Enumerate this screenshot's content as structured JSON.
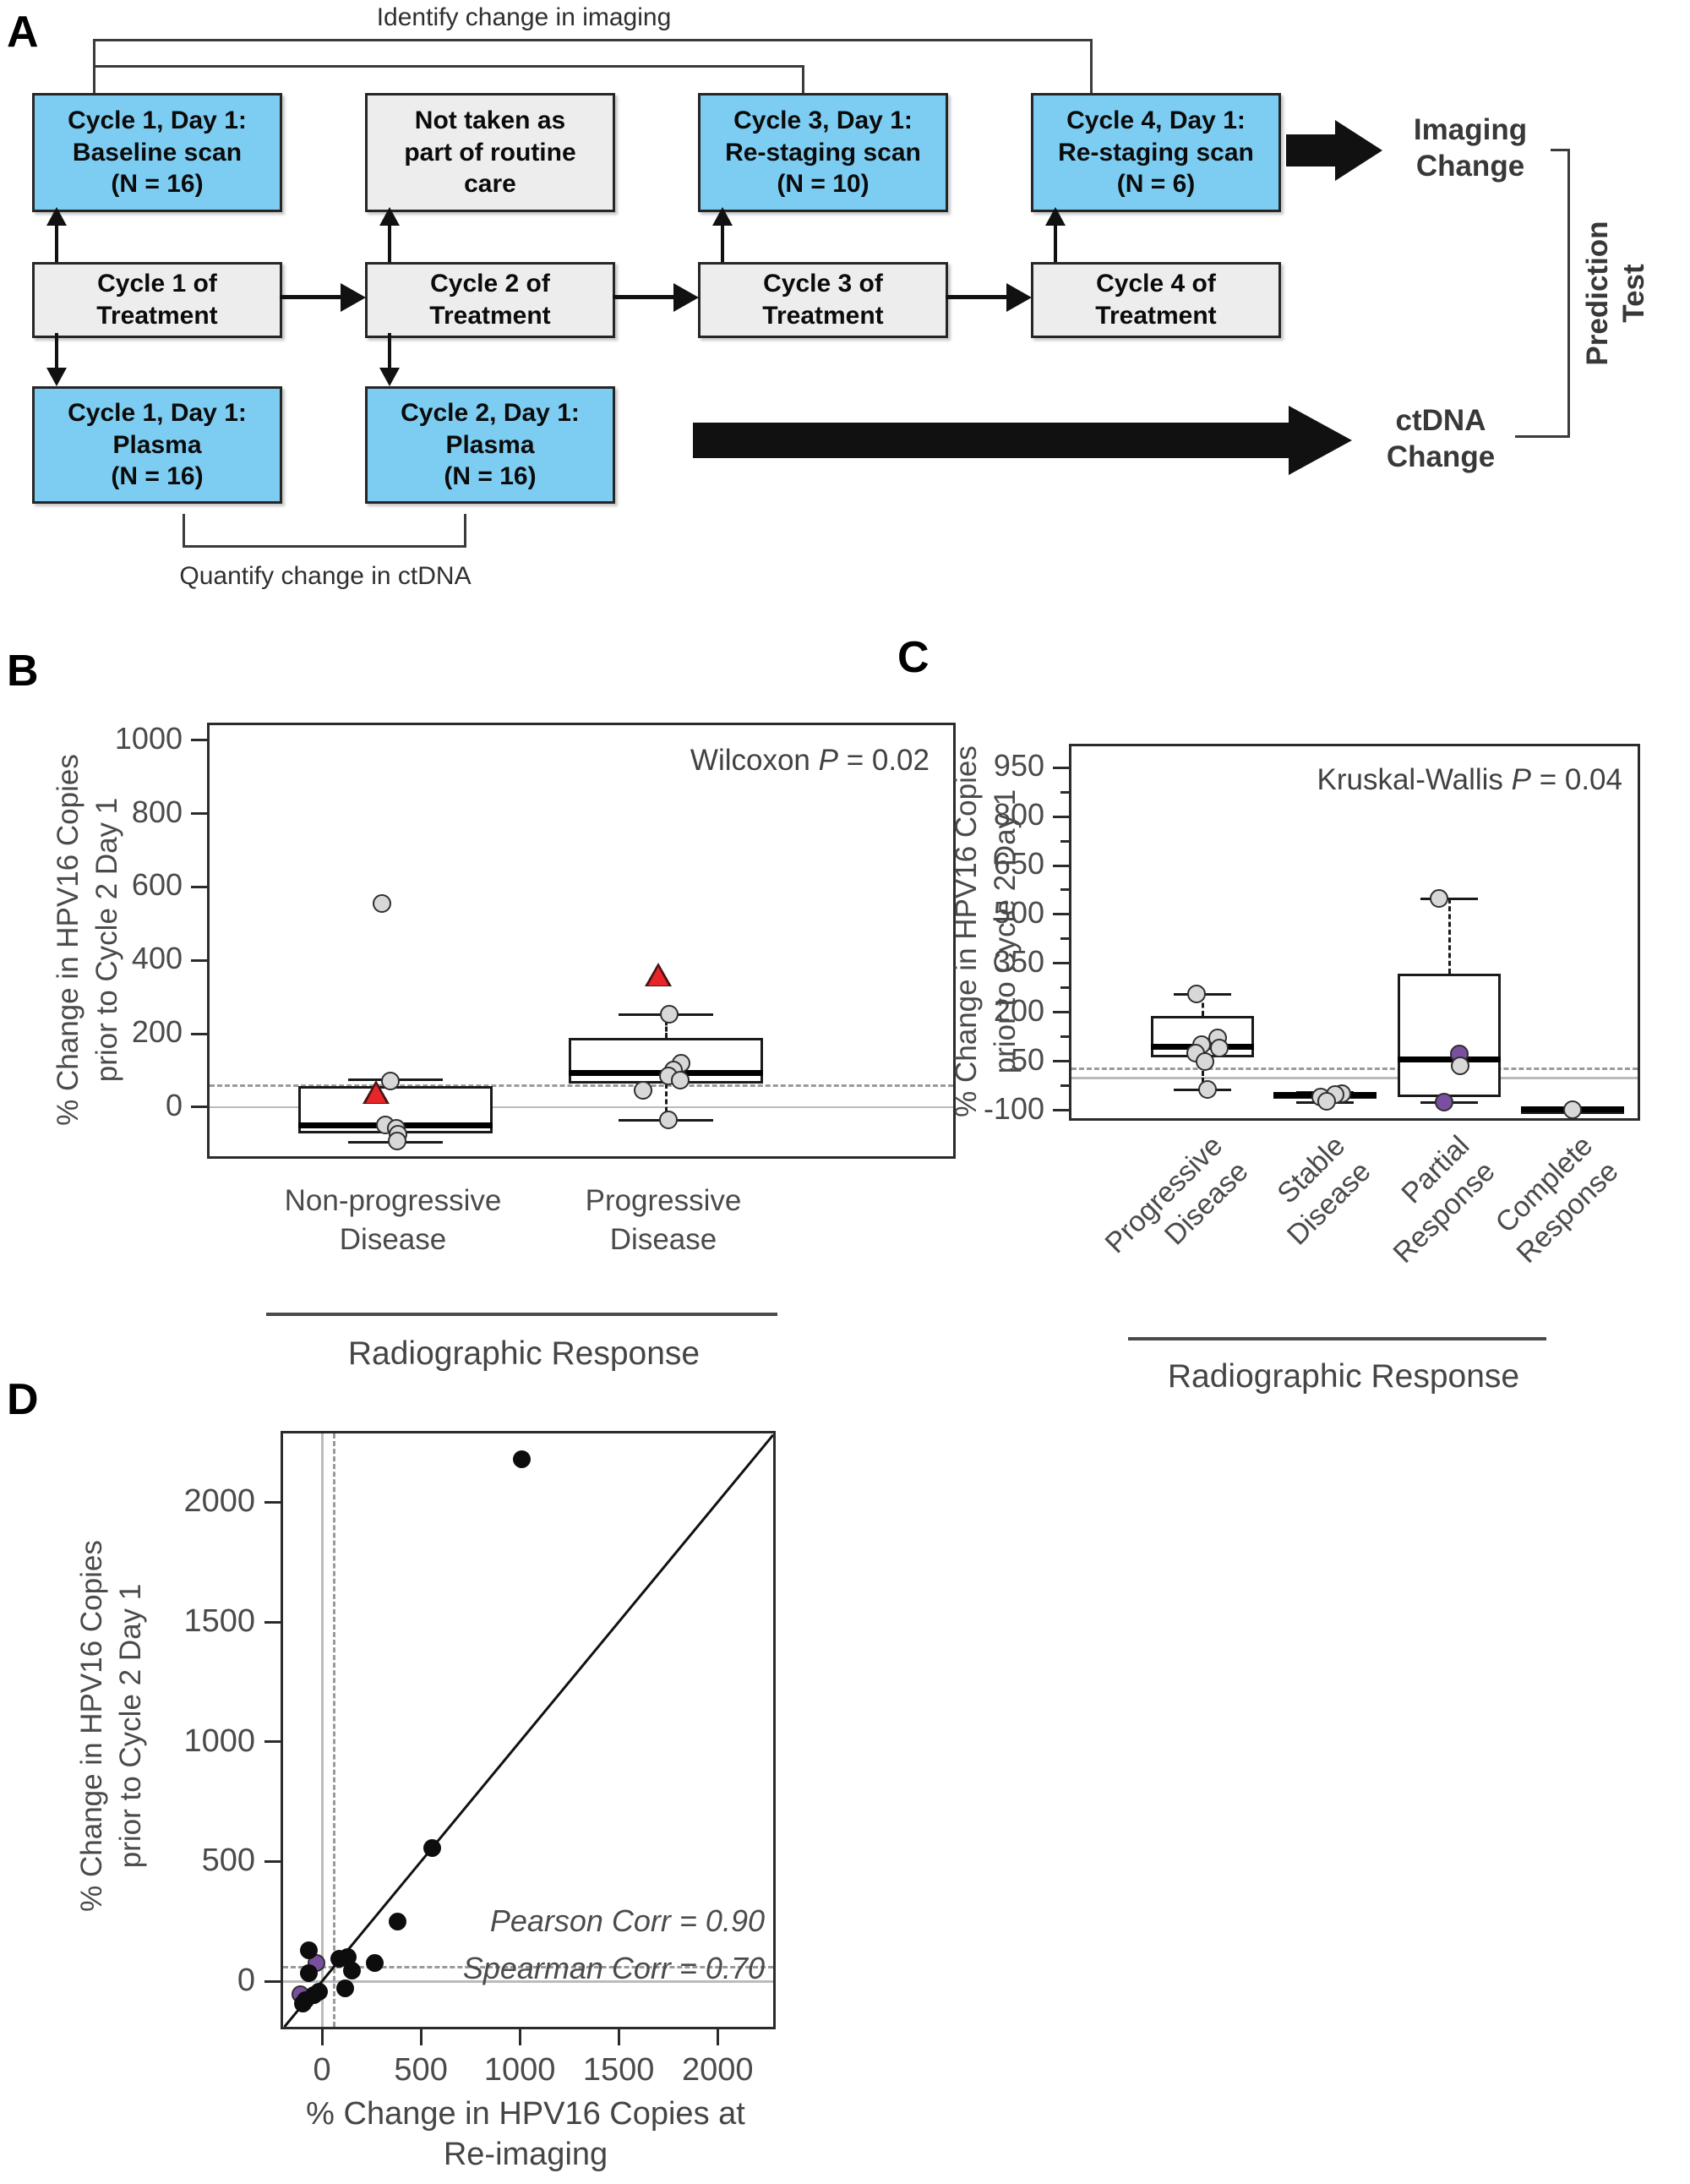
{
  "panel_labels": {
    "a": "A",
    "b": "B",
    "c": "C",
    "d": "D"
  },
  "colors": {
    "flow_blue": "#7dcdf2",
    "flow_gray": "#ededed",
    "box_edge": "#262626",
    "point_gray": "#d8d8d8",
    "point_purple": "#7a4fa0",
    "triangle_red": "#e8262a",
    "refline_solid": "#bbbbbb",
    "refline_dashed": "#9a9a9a",
    "ink": "#1a1a1a"
  },
  "flow": {
    "top_bracket_label": "Identify change in imaging",
    "bottom_bracket_label": "Quantify change in ctDNA",
    "row1": [
      {
        "text": "Cycle 1, Day 1:\nBaseline scan\n(N = 16)",
        "type": "blue"
      },
      {
        "text": "Not taken as\npart of routine\ncare",
        "type": "gray"
      },
      {
        "text": "Cycle 3, Day 1:\nRe-staging scan\n(N = 10)",
        "type": "blue"
      },
      {
        "text": "Cycle 4, Day 1:\nRe-staging scan\n(N = 6)",
        "type": "blue"
      }
    ],
    "row2": [
      {
        "text": "Cycle 1 of\nTreatment"
      },
      {
        "text": "Cycle 2 of\nTreatment"
      },
      {
        "text": "Cycle 3 of\nTreatment"
      },
      {
        "text": "Cycle 4 of\nTreatment"
      }
    ],
    "row3": [
      {
        "text": "Cycle 1, Day 1:\nPlasma\n(N = 16)",
        "type": "blue"
      },
      {
        "text": "Cycle 2, Day 1:\nPlasma\n(N = 16)",
        "type": "blue"
      }
    ],
    "imaging_change_label": "Imaging\nChange",
    "ctdna_change_label": "ctDNA\nChange",
    "prediction_test_label": "Prediction\nTest"
  },
  "chart_data": [
    {
      "panel": "B",
      "type": "box",
      "stat": {
        "pre": "Wilcoxon ",
        "italic": "P",
        "post": " = 0.02"
      },
      "ylabel": "% Change in HPV16 Copies\nprior to Cycle 2 Day 1",
      "xlabel": "Radiographic Response",
      "ylim": [
        -134,
        1041
      ],
      "yticks": [
        0,
        200,
        400,
        600,
        800,
        1000
      ],
      "reflines": {
        "solid": 0,
        "dashed": 60
      },
      "categories": [
        "Non-progressive\nDisease",
        "Progressive\nDisease"
      ],
      "groups": [
        {
          "name": "Non-progressive Disease",
          "whisker_low": -95,
          "q1": -72,
          "median": -51,
          "q3": 58,
          "whisker_high": 74,
          "mean_triangle": 41,
          "mean_dx": -23,
          "points": [
            {
              "v": 555,
              "dx": -16
            },
            {
              "v": 71,
              "dx": -6
            },
            {
              "v": -48,
              "dx": -12
            },
            {
              "v": -57,
              "dx": 1
            },
            {
              "v": -74,
              "dx": 3
            },
            {
              "v": -93,
              "dx": 2
            }
          ]
        },
        {
          "name": "Progressive Disease",
          "whisker_low": -35,
          "q1": 64,
          "median": 94,
          "q3": 189,
          "whisker_high": 253,
          "mean_triangle": 362,
          "mean_dx": -9,
          "points": [
            {
              "v": 253,
              "dx": 4
            },
            {
              "v": 120,
              "dx": 18
            },
            {
              "v": 101,
              "dx": 9
            },
            {
              "v": 85,
              "dx": 3
            },
            {
              "v": 74,
              "dx": 17
            },
            {
              "v": 46,
              "dx": -27
            },
            {
              "v": -35,
              "dx": 3
            }
          ]
        }
      ]
    },
    {
      "panel": "C",
      "type": "box",
      "stat": {
        "pre": "Kruskal-Wallis ",
        "italic": "P",
        "post": " = 0.04"
      },
      "ylabel": "% Change in HPV16 Copies\nprior to Cycle 2 Day 1",
      "xlabel": "Radiographic Response",
      "ylim": [
        -124,
        1015
      ],
      "yticks": [
        -100,
        50,
        200,
        350,
        500,
        650,
        800,
        950
      ],
      "yticks_minor": [
        -25,
        125,
        275,
        425,
        575,
        725,
        875
      ],
      "reflines": {
        "solid": 0,
        "dashed": 30
      },
      "categories": [
        "Progressive\nDisease",
        "Stable\nDisease",
        "Partial\nResponse",
        "Complete\nResponse"
      ],
      "groups": [
        {
          "name": "Progressive Disease",
          "whisker_low": -36,
          "q1": 62,
          "median": 96,
          "q3": 189,
          "whisker_high": 254,
          "points": [
            {
              "v": 256,
              "dx": -7
            },
            {
              "v": 122,
              "dx": 18
            },
            {
              "v": 101,
              "dx": -1
            },
            {
              "v": 91,
              "dx": 20
            },
            {
              "v": 75,
              "dx": -8
            },
            {
              "v": 49,
              "dx": 3
            },
            {
              "v": -36,
              "dx": 6
            }
          ]
        },
        {
          "name": "Stable Disease",
          "whisker_low": -75,
          "q1": -62,
          "median": -54,
          "q3": -48,
          "whisker_high": -45,
          "points": [
            {
              "v": -49,
              "dx": 20
            },
            {
              "v": -52,
              "dx": 12
            },
            {
              "v": -60,
              "dx": -5
            },
            {
              "v": -73,
              "dx": 2
            }
          ]
        },
        {
          "name": "Partial Response",
          "whisker_low": -75,
          "q1": -58,
          "median": 57,
          "q3": 318,
          "whisker_high": 548,
          "points": [
            {
              "v": 548,
              "dx": -12
            },
            {
              "v": 72,
              "dx": 12,
              "c": "purple"
            },
            {
              "v": 36,
              "dx": 13
            },
            {
              "v": -75,
              "dx": -6,
              "c": "purple"
            }
          ]
        },
        {
          "name": "Complete Response",
          "whisker_low": -97,
          "q1": -98,
          "median": -97,
          "q3": -96,
          "whisker_high": -97,
          "points": [
            {
              "v": -97,
              "dx": 0
            }
          ]
        }
      ]
    },
    {
      "panel": "D",
      "type": "scatter",
      "annotations": [
        "Pearson Corr = 0.90",
        "Spearman Corr = 0.70"
      ],
      "xlabel": "% Change in HPV16 Copies at\nRe-imaging",
      "ylabel": "% Change in HPV16 Copies\nprior to Cycle 2 Day 1",
      "xlim": [
        -197,
        2281
      ],
      "ylim": [
        -190,
        2287
      ],
      "xticks": [
        0,
        500,
        1000,
        1500,
        2000
      ],
      "yticks": [
        0,
        500,
        1000,
        1500,
        2000
      ],
      "identity_line": true,
      "reflines": {
        "solid_x": 0,
        "solid_y": 0,
        "dashed_x": 60,
        "dashed_y": 60
      },
      "points": [
        {
          "x": -30,
          "y": 75,
          "c": "purple"
        },
        {
          "x": -110,
          "y": -55,
          "c": "purple"
        },
        {
          "x": 1010,
          "y": 2180
        },
        {
          "x": 555,
          "y": 555
        },
        {
          "x": 380,
          "y": 250
        },
        {
          "x": 265,
          "y": 78
        },
        {
          "x": 128,
          "y": 100
        },
        {
          "x": 86,
          "y": 95
        },
        {
          "x": 150,
          "y": 46
        },
        {
          "x": 116,
          "y": -30
        },
        {
          "x": -65,
          "y": 130
        },
        {
          "x": -65,
          "y": 35
        },
        {
          "x": -85,
          "y": -78
        },
        {
          "x": -95,
          "y": -92
        },
        {
          "x": -43,
          "y": -57
        },
        {
          "x": -17,
          "y": -42
        }
      ]
    }
  ]
}
